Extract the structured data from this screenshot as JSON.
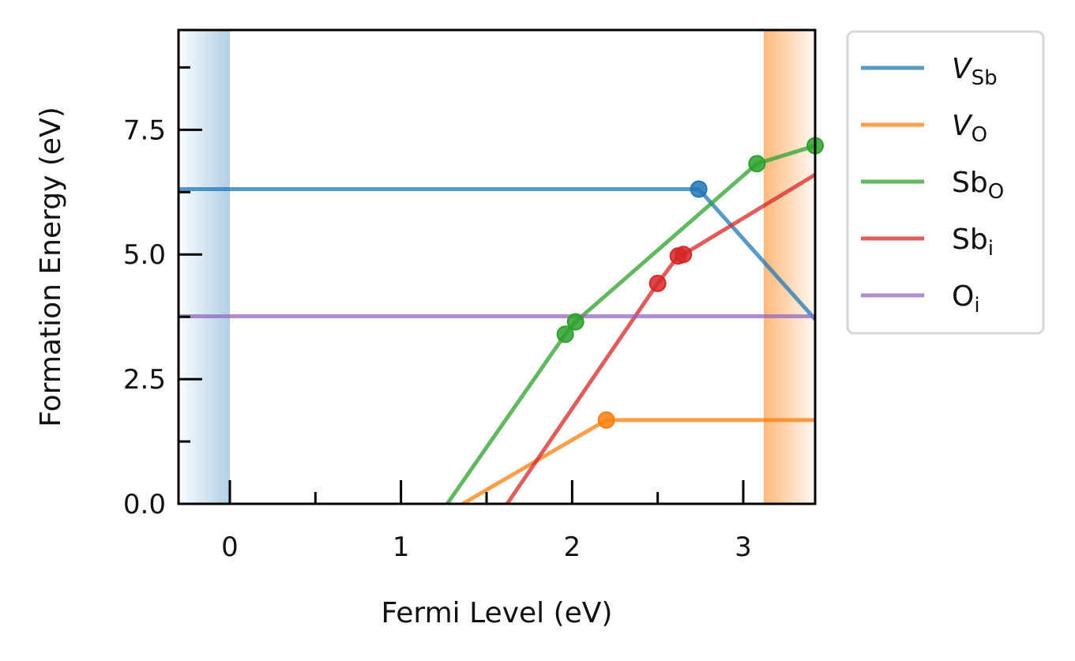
{
  "chart_data": {
    "type": "line",
    "title": "",
    "xlabel": "Fermi Level (eV)",
    "ylabel": "Formation Energy (eV)",
    "xlim": [
      -0.3,
      3.42
    ],
    "ylim": [
      0.0,
      9.5
    ],
    "x_ticks": [
      0,
      1,
      2,
      3
    ],
    "x_tick_labels": [
      "0",
      "1",
      "2",
      "3"
    ],
    "x_minor_ticks": [
      0.5,
      1.5,
      2.5
    ],
    "y_ticks": [
      0.0,
      2.5,
      5.0,
      7.5
    ],
    "y_tick_labels": [
      "0.0",
      "2.5",
      "5.0",
      "7.5"
    ],
    "y_minor_ticks": [
      1.25,
      3.75,
      6.25,
      8.75
    ],
    "grid": false,
    "legend_position": "outside-right",
    "shaded_regions": [
      {
        "name": "valence-band",
        "x_range": [
          -0.3,
          0.0
        ],
        "color": "#1f77b4"
      },
      {
        "name": "conduction-band",
        "x_range": [
          3.12,
          3.42
        ],
        "color": "#ff7f0e"
      }
    ],
    "series": [
      {
        "name": "V_Sb",
        "label_main": "V",
        "label_sub": "Sb",
        "italic": true,
        "color": "#1f77b4",
        "points": [
          [
            -0.3,
            6.31
          ],
          [
            2.74,
            6.31
          ],
          [
            3.42,
            3.7
          ]
        ],
        "markers": [
          [
            2.74,
            6.31
          ]
        ]
      },
      {
        "name": "V_O",
        "label_main": "V",
        "label_sub": "O",
        "italic": true,
        "color": "#ff7f0e",
        "points": [
          [
            1.36,
            0.0
          ],
          [
            2.2,
            1.68
          ],
          [
            3.42,
            1.68
          ]
        ],
        "markers": [
          [
            2.2,
            1.68
          ]
        ]
      },
      {
        "name": "Sb_O",
        "label_main": "Sb",
        "label_sub": "O",
        "italic": false,
        "color": "#2ca02c",
        "points": [
          [
            1.27,
            0.0
          ],
          [
            1.96,
            3.4
          ],
          [
            2.02,
            3.65
          ],
          [
            3.08,
            6.82
          ],
          [
            3.42,
            7.18
          ]
        ],
        "markers": [
          [
            1.96,
            3.4
          ],
          [
            2.02,
            3.65
          ],
          [
            3.08,
            6.82
          ],
          [
            3.42,
            7.18
          ]
        ]
      },
      {
        "name": "Sb_i",
        "label_main": "Sb",
        "label_sub": "i",
        "italic": false,
        "color": "#d62728",
        "points": [
          [
            1.62,
            0.0
          ],
          [
            2.5,
            4.42
          ],
          [
            2.62,
            4.97
          ],
          [
            2.65,
            5.0
          ],
          [
            3.42,
            6.6
          ]
        ],
        "markers": [
          [
            2.5,
            4.42
          ],
          [
            2.62,
            4.97
          ],
          [
            2.65,
            5.0
          ]
        ]
      },
      {
        "name": "O_i",
        "label_main": "O",
        "label_sub": "i",
        "italic": false,
        "color": "#9467bd",
        "points": [
          [
            -0.3,
            3.76
          ],
          [
            3.42,
            3.76
          ]
        ],
        "markers": []
      }
    ]
  }
}
